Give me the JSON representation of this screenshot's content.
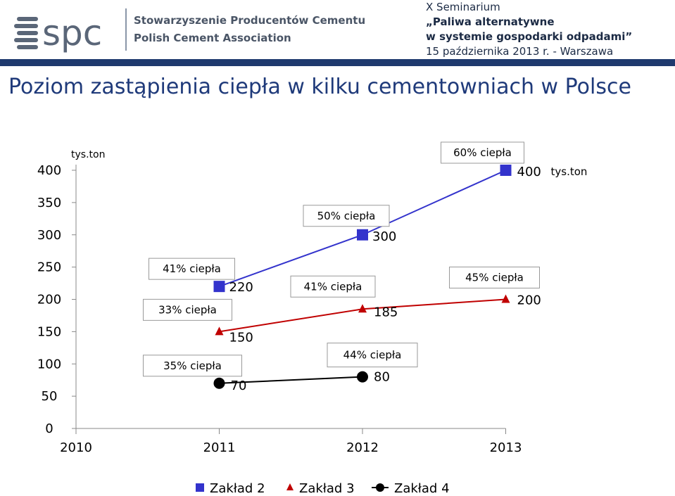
{
  "header": {
    "logo_text": "spc",
    "org_line1": "Stowarzyszenie Producentów Cementu",
    "org_line2": "Polish Cement Association",
    "seminar": {
      "line1": "X Seminarium",
      "line2": "„Paliwa alternatywne",
      "line3": "w systemie gospodarki odpadami”",
      "line4": "15 października 2013 r. - Warszawa"
    }
  },
  "page_title": "Poziom zastąpienia ciepła w kilku cementowniach w Polsce",
  "colors": {
    "header_bar": "#1f3a6e",
    "title": "#1f3a7a",
    "zaklad2": "#3333cc",
    "zaklad3": "#c00000",
    "zaklad4": "#000000"
  },
  "chart_data": {
    "type": "line",
    "unit_label": "tys.ton",
    "x": [
      "2010",
      "2011",
      "2012",
      "2013"
    ],
    "ylim": [
      0,
      400
    ],
    "yticks": [
      "0",
      "50",
      "100",
      "150",
      "200",
      "250",
      "300",
      "350",
      "400"
    ],
    "grid": false,
    "legend_position": "bottom",
    "series": [
      {
        "name": "Zakład 2",
        "marker": "square",
        "color": "#3333cc",
        "points": [
          {
            "x": "2011",
            "y": 220,
            "value_label": "220",
            "percent_label": "41% ciepła"
          },
          {
            "x": "2012",
            "y": 300,
            "value_label": "300",
            "percent_label": "50% ciepła"
          },
          {
            "x": "2013",
            "y": 400,
            "value_label": "400",
            "unit_suffix": "tys.ton",
            "percent_label": "60% ciepła"
          }
        ]
      },
      {
        "name": "Zakład 3",
        "marker": "triangle",
        "color": "#c00000",
        "points": [
          {
            "x": "2011",
            "y": 150,
            "value_label": "150",
            "percent_label": "33% ciepła"
          },
          {
            "x": "2012",
            "y": 185,
            "value_label": "185",
            "percent_label": "41% ciepła"
          },
          {
            "x": "2013",
            "y": 200,
            "value_label": "200",
            "percent_label": "45% ciepła"
          }
        ]
      },
      {
        "name": "Zakład 4",
        "marker": "circle",
        "color": "#000000",
        "points": [
          {
            "x": "2011",
            "y": 70,
            "value_label": "70",
            "percent_label": "35% ciepła"
          },
          {
            "x": "2012",
            "y": 80,
            "value_label": "80",
            "percent_label": "44% ciepła"
          }
        ]
      }
    ]
  }
}
